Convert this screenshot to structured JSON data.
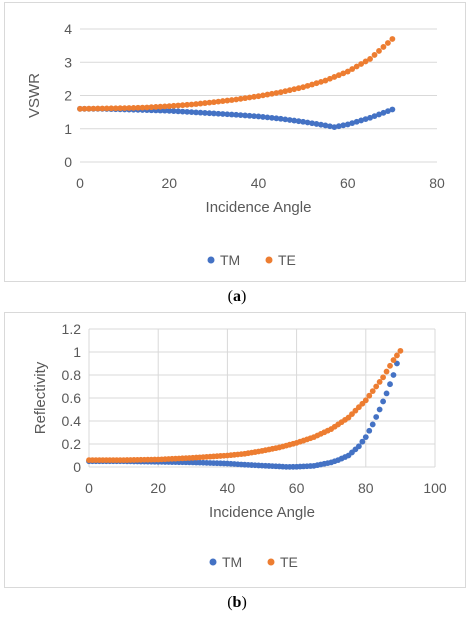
{
  "chart_data": [
    {
      "type": "scatter",
      "title": "",
      "xlabel": "Incidence Angle",
      "ylabel": "VSWR",
      "xlim": [
        0,
        80
      ],
      "ylim": [
        0,
        4
      ],
      "xticks": [
        "0",
        "20",
        "40",
        "60",
        "80"
      ],
      "yticks": [
        "0",
        "1",
        "2",
        "3",
        "4"
      ],
      "grid": "horizontal",
      "legend_position": "bottom",
      "series": [
        {
          "name": "TM",
          "color": "#4472c4",
          "x": [
            0,
            5,
            10,
            15,
            20,
            25,
            30,
            35,
            40,
            45,
            50,
            55,
            57,
            60,
            65,
            70
          ],
          "values": [
            1.6,
            1.6,
            1.58,
            1.56,
            1.54,
            1.5,
            1.46,
            1.42,
            1.37,
            1.3,
            1.21,
            1.1,
            1.05,
            1.13,
            1.33,
            1.58
          ]
        },
        {
          "name": "TE",
          "color": "#ed7d31",
          "x": [
            0,
            5,
            10,
            15,
            20,
            25,
            30,
            35,
            40,
            45,
            50,
            55,
            60,
            65,
            70
          ],
          "values": [
            1.6,
            1.61,
            1.62,
            1.64,
            1.68,
            1.73,
            1.8,
            1.88,
            1.98,
            2.1,
            2.25,
            2.45,
            2.72,
            3.1,
            3.7
          ]
        }
      ],
      "caption": "a"
    },
    {
      "type": "scatter",
      "title": "",
      "xlabel": "Incidence Angle",
      "ylabel": "Reflectivity",
      "xlim": [
        0,
        100
      ],
      "ylim": [
        0,
        1.2
      ],
      "xticks": [
        "0",
        "20",
        "40",
        "60",
        "80",
        "100"
      ],
      "yticks": [
        "0",
        "0.2",
        "0.4",
        "0.6",
        "0.8",
        "1",
        "1.2"
      ],
      "grid": "both",
      "legend_position": "bottom",
      "series": [
        {
          "name": "TM",
          "color": "#4472c4",
          "x": [
            0,
            10,
            20,
            30,
            40,
            45,
            50,
            55,
            57,
            60,
            65,
            70,
            72,
            75,
            78,
            80,
            82,
            84,
            86,
            88,
            89
          ],
          "values": [
            0.05,
            0.05,
            0.045,
            0.04,
            0.03,
            0.02,
            0.012,
            0.005,
            0.001,
            0.002,
            0.01,
            0.04,
            0.06,
            0.1,
            0.18,
            0.26,
            0.37,
            0.5,
            0.64,
            0.8,
            0.9
          ]
        },
        {
          "name": "TE",
          "color": "#ed7d31",
          "x": [
            0,
            10,
            20,
            30,
            40,
            45,
            50,
            55,
            60,
            65,
            70,
            75,
            80,
            85,
            88,
            90
          ],
          "values": [
            0.06,
            0.06,
            0.065,
            0.08,
            0.1,
            0.115,
            0.14,
            0.17,
            0.21,
            0.26,
            0.33,
            0.43,
            0.58,
            0.78,
            0.93,
            1.01
          ]
        }
      ],
      "caption": "b"
    }
  ]
}
